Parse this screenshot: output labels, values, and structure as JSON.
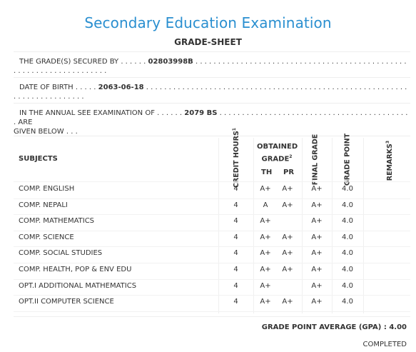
{
  "header": {
    "title": "Secondary Education Examination",
    "subtitle": "GRADE-SHEET"
  },
  "info": {
    "secured_label": "THE GRADE(S) SECURED BY . . . . . .",
    "symbol_no": "02803998B",
    "secured_dots": ". . . . . . . . . . . . . . . . . . . . . . . . . . . . . . . . . . . . . . . . . . . . . . . . . . . . . . . . . . . . . . . . . . . .",
    "dob_label": "DATE OF BIRTH . . . . .",
    "dob": "2063-06-18",
    "dob_dots": ". . . . . . . . . . . . . . . . . . . . . . . . . . . . . . . . . . . . . . . . . . . . . . . . . . . . . . . . . . . . . . . . . . . . . . . . . .",
    "exam_label": "IN THE ANNUAL SEE EXAMINATION OF . . . . . .",
    "exam_year": "2079 BS",
    "exam_dots": ". . . . . . . . . . . . . . . . . . . . . . . . . . . . . . . . . . . . . . . . . . . ARE",
    "exam_tail": "GIVEN BELOW . . ."
  },
  "table": {
    "col_subjects": "SUBJECTS",
    "col_credit": "CREDIT HOURS",
    "credit_sup": "1",
    "col_obtained": "OBTAINED GRADE",
    "obtained_sup": "2",
    "col_th": "TH",
    "col_pr": "PR",
    "col_final": "FINAL GRADE",
    "col_point": "GRADE POINT",
    "col_remarks": "REMARKS",
    "remarks_sup": "3",
    "rows": [
      {
        "subject": "COMP. ENGLISH",
        "credit": "4",
        "th": "A+",
        "pr": "A+",
        "final": "A+",
        "point": "4.0"
      },
      {
        "subject": "COMP. NEPALI",
        "credit": "4",
        "th": "A",
        "pr": "A+",
        "final": "A+",
        "point": "4.0"
      },
      {
        "subject": "COMP. MATHEMATICS",
        "credit": "4",
        "th": "A+",
        "pr": "",
        "final": "A+",
        "point": "4.0"
      },
      {
        "subject": "COMP. SCIENCE",
        "credit": "4",
        "th": "A+",
        "pr": "A+",
        "final": "A+",
        "point": "4.0"
      },
      {
        "subject": "COMP. SOCIAL STUDIES",
        "credit": "4",
        "th": "A+",
        "pr": "A+",
        "final": "A+",
        "point": "4.0"
      },
      {
        "subject": "COMP. HEALTH, POP & ENV EDU",
        "credit": "4",
        "th": "A+",
        "pr": "A+",
        "final": "A+",
        "point": "4.0"
      },
      {
        "subject": "OPT.I ADDITIONAL MATHEMATICS",
        "credit": "4",
        "th": "A+",
        "pr": "",
        "final": "A+",
        "point": "4.0"
      },
      {
        "subject": "OPT.II COMPUTER SCIENCE",
        "credit": "4",
        "th": "A+",
        "pr": "A+",
        "final": "A+",
        "point": "4.0"
      }
    ]
  },
  "summary": {
    "gpa_label": "GRADE POINT AVERAGE (GPA) :",
    "gpa_value": "4.00",
    "status": "COMPLETED"
  }
}
